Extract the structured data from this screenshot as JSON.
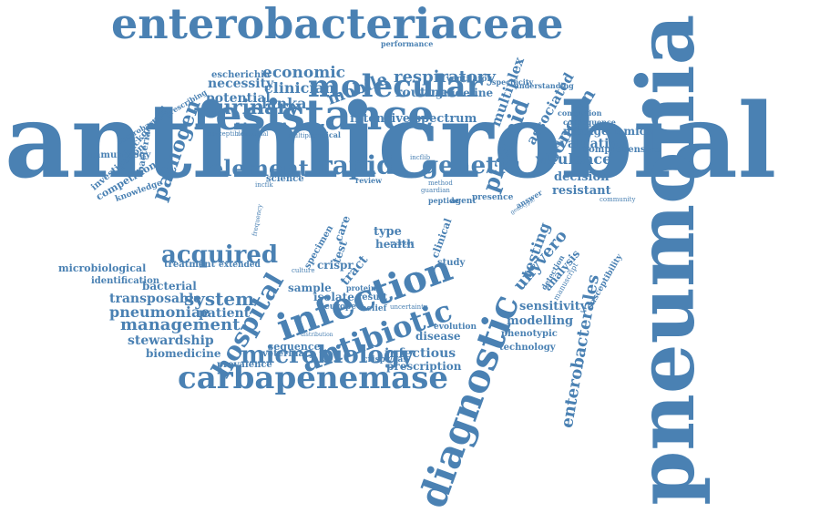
{
  "color": "#4a81b3",
  "words": [
    "antimicrobial",
    "pneumonia",
    "resistance",
    "enterobacteriaceae",
    "infection",
    "diagnostic",
    "molecular",
    "antibiotic",
    "carbapenemase",
    "microbiology",
    "acquired",
    "hospital",
    "rapid",
    "genetic",
    "element",
    "urinary",
    "pathogen",
    "plasmid",
    "respiratory",
    "economic",
    "mobile",
    "clinician",
    "necessity",
    "potential",
    "lanka",
    "routine",
    "guideline",
    "intensive spectrum",
    "concern",
    "virulence",
    "evaluation",
    "metagenomics",
    "comprehensive",
    "decision",
    "resistant",
    "multiplex",
    "associated",
    "enterobacterales",
    "testing",
    "unyvero",
    "analysis",
    "sensitivity",
    "modelling",
    "phenotypic",
    "technology",
    "system",
    "management",
    "pneumoniae",
    "patient",
    "transposable",
    "bacterial",
    "stewardship",
    "biomedicine",
    "veterinary",
    "prevalence",
    "sequence",
    "isolate",
    "sample",
    "crispr",
    "infectious",
    "prescription",
    "disease",
    "evolution",
    "crispr/cas",
    "treatment",
    "extended",
    "identification",
    "microbiological",
    "immunology",
    "bacteria",
    "background",
    "investigation",
    "competition",
    "knowledge",
    "enterobacter prescribing",
    "escherichia",
    "performance",
    "ventilator",
    "specificity",
    "understanding",
    "conclusion",
    "consequence",
    "implementation",
    "community",
    "susceptibility",
    "type",
    "health",
    "clinical",
    "result",
    "belief",
    "protein",
    "europe",
    "study",
    "presence",
    "agent",
    "answer",
    "peptide",
    "review",
    "science",
    "incflk",
    "incflib",
    "critical",
    "multiple",
    "susceptible",
    "nosocomial",
    "detection",
    "manuscript",
    "uncertainty",
    "care",
    "test",
    "tract",
    "specimen",
    "marker",
    "culture",
    "genotypic",
    "method",
    "guardian",
    "distribution",
    "frequency",
    "infection"
  ]
}
